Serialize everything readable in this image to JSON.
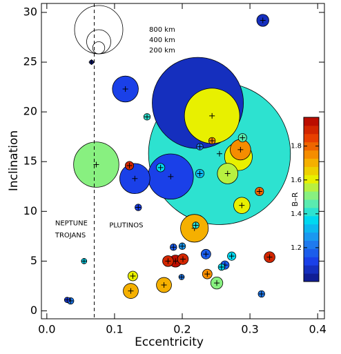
{
  "chart_data": {
    "type": "bubble",
    "xlabel": "Eccentricity",
    "ylabel": "Inclination",
    "xlim": [
      -0.008,
      0.41
    ],
    "ylim": [
      -0.8,
      30.9
    ],
    "xticks": [
      {
        "value": 0,
        "label": "0.0"
      },
      0.1,
      0.2,
      0.3,
      0.4
    ],
    "yticks": [
      0,
      5,
      10,
      15,
      20,
      25,
      30
    ],
    "x": [
      0.255,
      0.223,
      0.244,
      0.073,
      0.183,
      0.13,
      0.116,
      0.319,
      0.066,
      0.148,
      0.283,
      0.286,
      0.289,
      0.244,
      0.226,
      0.122,
      0.168,
      0.226,
      0.267,
      0.288,
      0.314,
      0.135,
      0.218,
      0.22,
      0.187,
      0.2,
      0.235,
      0.273,
      0.329,
      0.179,
      0.19,
      0.201,
      0.263,
      0.258,
      0.237,
      0.251,
      0.127,
      0.173,
      0.124,
      0.199,
      0.055,
      0.317,
      0.03,
      0.035
    ],
    "y": [
      15.8,
      20.9,
      19.6,
      14.7,
      13.5,
      13.3,
      22.3,
      29.2,
      25.0,
      19.5,
      15.5,
      16.2,
      17.4,
      17.1,
      16.5,
      14.6,
      14.4,
      13.8,
      13.8,
      10.6,
      12.0,
      10.4,
      8.3,
      8.6,
      6.4,
      6.5,
      5.7,
      5.5,
      5.4,
      5.0,
      5.0,
      5.2,
      4.6,
      4.4,
      3.7,
      2.8,
      3.5,
      2.6,
      2.0,
      3.4,
      5.0,
      1.7,
      1.1,
      1.0
    ],
    "size": [
      2350,
      1510,
      915,
      750,
      750,
      500,
      430,
      200,
      70,
      110,
      460,
      340,
      140,
      110,
      110,
      140,
      140,
      140,
      340,
      270,
      140,
      110,
      460,
      110,
      110,
      110,
      160,
      140,
      180,
      180,
      200,
      180,
      140,
      110,
      160,
      200,
      160,
      250,
      250,
      90,
      90,
      110,
      90,
      110
    ],
    "color_values": [
      1.4,
      1.05,
      1.6,
      1.5,
      1.1,
      1.1,
      1.1,
      1.05,
      1.0,
      1.4,
      1.62,
      1.75,
      1.45,
      1.75,
      1.2,
      1.9,
      1.35,
      1.3,
      1.55,
      1.62,
      1.8,
      1.1,
      1.7,
      1.4,
      1.15,
      1.25,
      1.15,
      1.35,
      1.9,
      1.9,
      1.95,
      1.9,
      1.15,
      1.35,
      1.75,
      1.5,
      1.62,
      1.7,
      1.7,
      1.2,
      1.35,
      1.2,
      1.1,
      1.2
    ],
    "colorbar_label": "B–R",
    "clim": [
      1.0,
      1.97
    ],
    "cticks": [
      1.2,
      1.4,
      1.6,
      1.8
    ],
    "colormap": [
      "#0e1680",
      "#1a40e8",
      "#2088f0",
      "#00d8f0",
      "#70f0a0",
      "#e8f000",
      "#f8a000",
      "#e84000",
      "#b00000"
    ],
    "size_legend": [
      {
        "value": 800,
        "label": "800 km"
      },
      {
        "value": 400,
        "label": "400 km"
      },
      {
        "value": 200,
        "label": "200 km"
      }
    ],
    "vline": 0.07,
    "annotations": [
      {
        "text": "NEPTUNE",
        "x": 0.0,
        "y": 8.8
      },
      {
        "text": "TROJANS",
        "x": 0.0,
        "y": 7.6
      },
      {
        "text": "PLUTINOS",
        "x": 0.08,
        "y": 8.6
      }
    ]
  }
}
